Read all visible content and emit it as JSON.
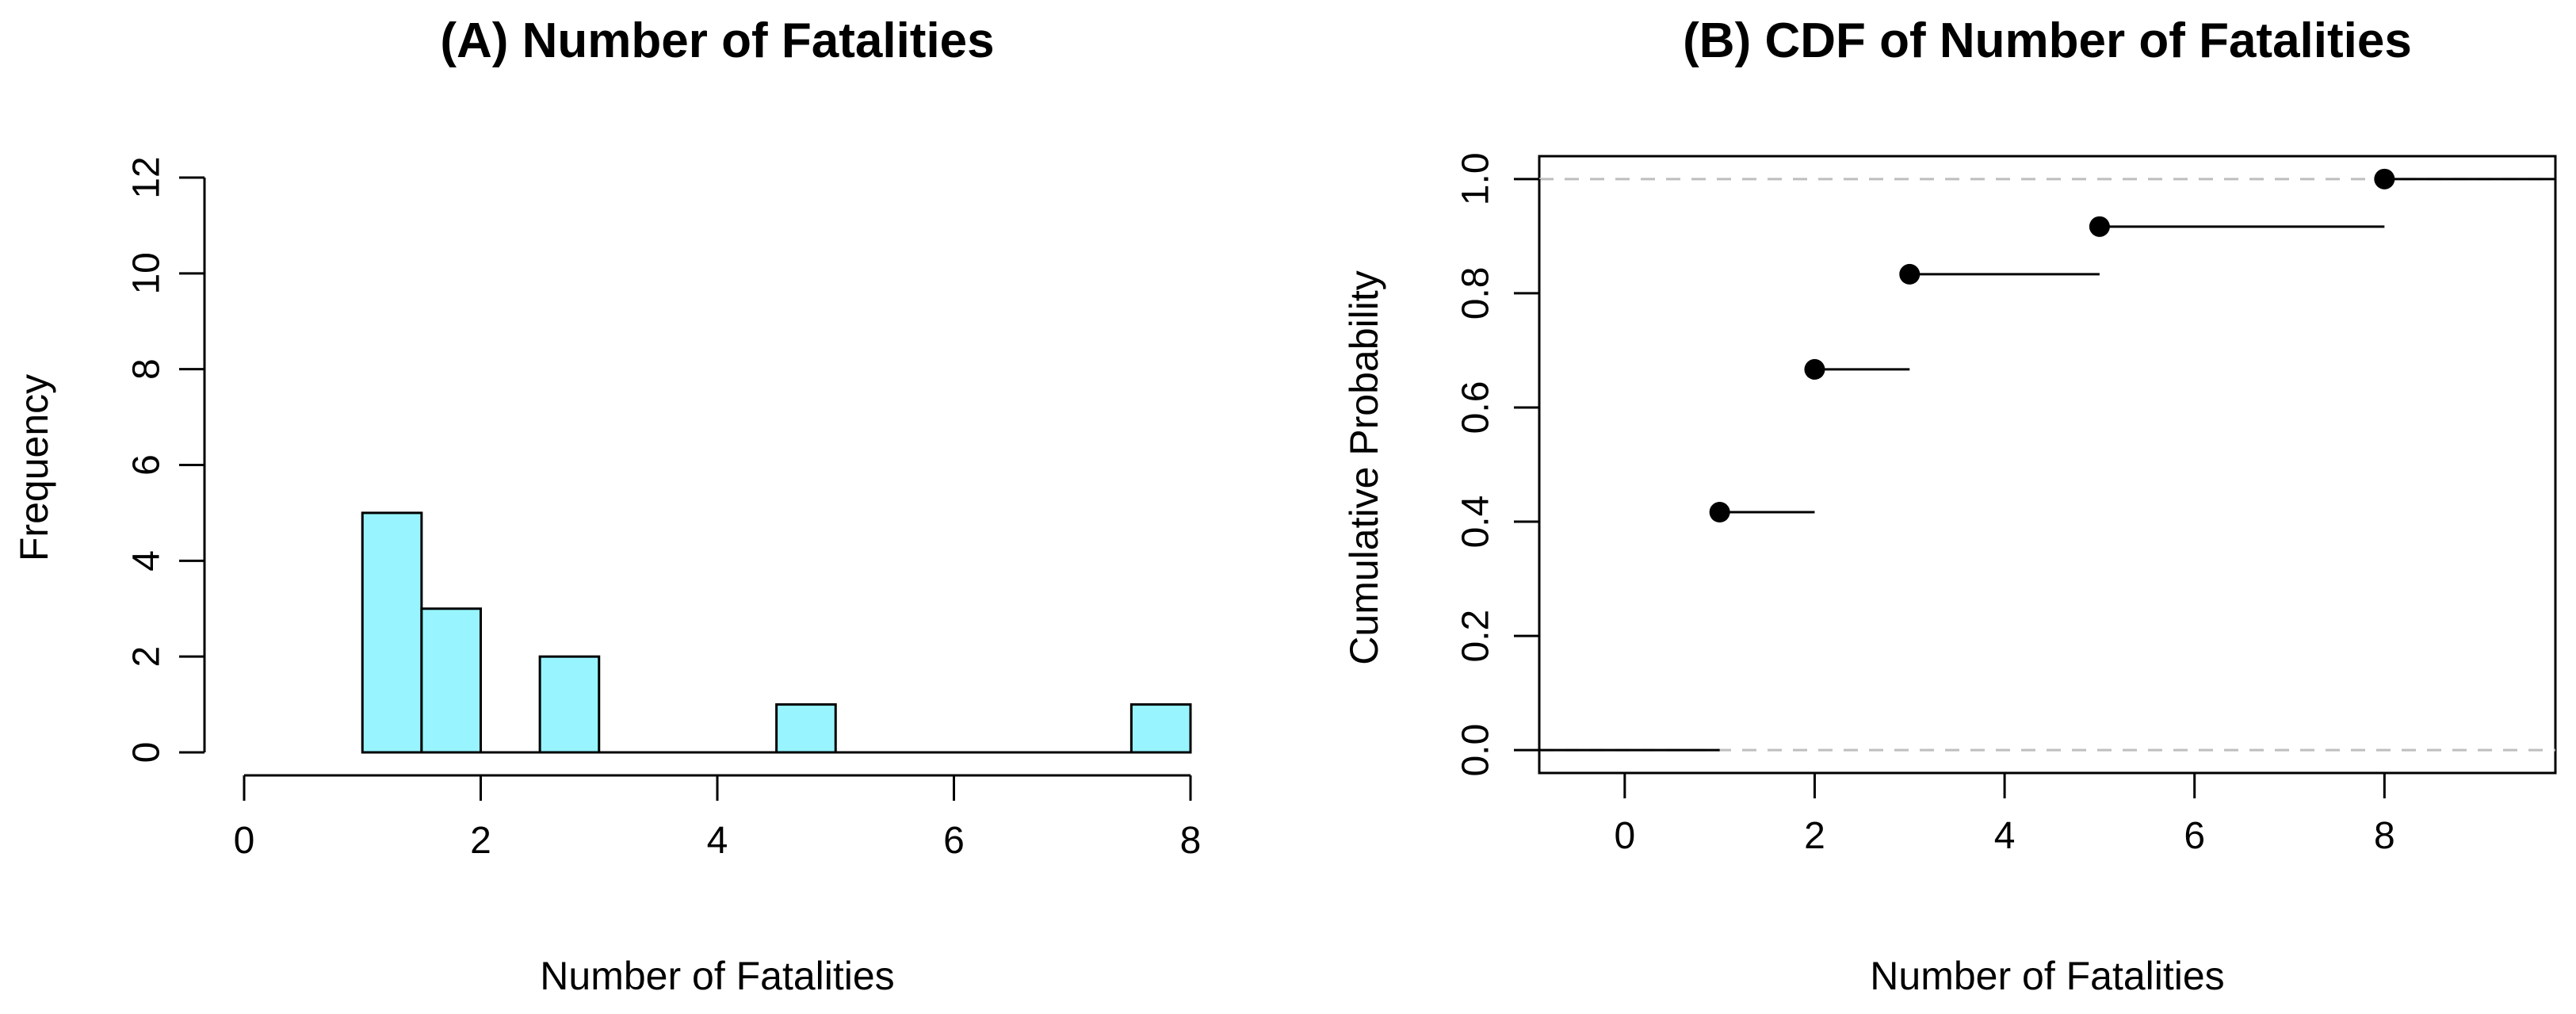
{
  "chart_data": [
    {
      "type": "bar",
      "title": "(A) Number of Fatalities",
      "xlabel": "Number of Fatalities",
      "ylabel": "Frequency",
      "bins": [
        {
          "x0": 1.0,
          "x1": 1.5,
          "count": 5
        },
        {
          "x0": 1.5,
          "x1": 2.0,
          "count": 3
        },
        {
          "x0": 2.0,
          "x1": 2.5,
          "count": 0
        },
        {
          "x0": 2.5,
          "x1": 3.0,
          "count": 2
        },
        {
          "x0": 3.0,
          "x1": 3.5,
          "count": 0
        },
        {
          "x0": 3.5,
          "x1": 4.0,
          "count": 0
        },
        {
          "x0": 4.0,
          "x1": 4.5,
          "count": 0
        },
        {
          "x0": 4.5,
          "x1": 5.0,
          "count": 1
        },
        {
          "x0": 5.0,
          "x1": 5.5,
          "count": 0
        },
        {
          "x0": 5.5,
          "x1": 6.0,
          "count": 0
        },
        {
          "x0": 6.0,
          "x1": 6.5,
          "count": 0
        },
        {
          "x0": 6.5,
          "x1": 7.0,
          "count": 0
        },
        {
          "x0": 7.0,
          "x1": 7.5,
          "count": 0
        },
        {
          "x0": 7.5,
          "x1": 8.0,
          "count": 1
        }
      ],
      "xlim": [
        0,
        8
      ],
      "ylim": [
        0,
        12
      ],
      "xticks": [
        "0",
        "2",
        "4",
        "6",
        "8"
      ],
      "yticks": [
        "0",
        "2",
        "4",
        "6",
        "8",
        "10",
        "12"
      ],
      "bar_color": "#98F5FF",
      "grid": false
    },
    {
      "type": "step",
      "title": "(B) CDF of Number of Fatalities",
      "xlabel": "Number of Fatalities",
      "ylabel": "Cumulative Probability",
      "points": [
        {
          "x": 1,
          "y": 0.4167
        },
        {
          "x": 2,
          "y": 0.6667
        },
        {
          "x": 3,
          "y": 0.8333
        },
        {
          "x": 5,
          "y": 0.9167
        },
        {
          "x": 8,
          "y": 1.0
        }
      ],
      "xlim": [
        -0.9,
        9.8
      ],
      "ylim": [
        -0.04,
        1.04
      ],
      "xticks": [
        "0",
        "2",
        "4",
        "6",
        "8"
      ],
      "yticks": [
        "0.0",
        "0.2",
        "0.4",
        "0.6",
        "0.8",
        "1.0"
      ],
      "reference_lines": [
        0,
        1
      ],
      "reference_line_color": "#BEBEBE",
      "grid": false
    }
  ]
}
